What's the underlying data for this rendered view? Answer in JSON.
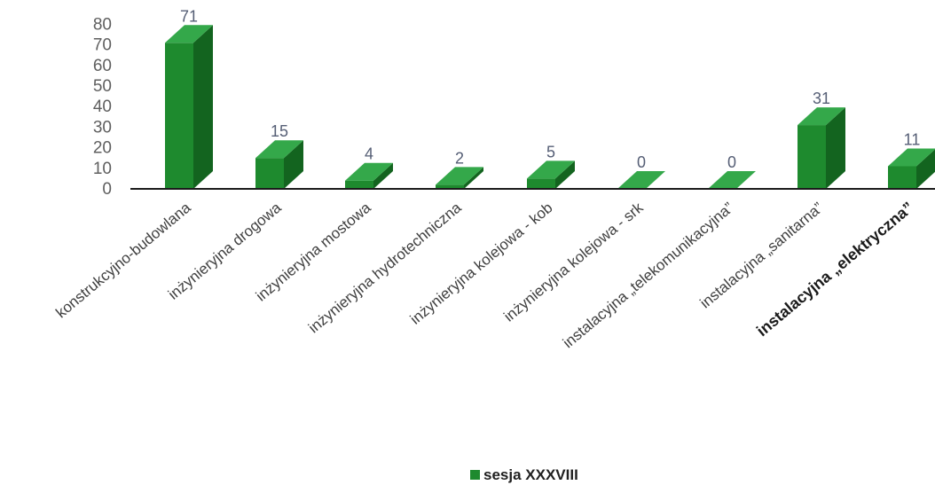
{
  "chart_data": {
    "type": "bar",
    "style": "3d",
    "categories": [
      "konstrukcyjno-budowlana",
      "inżynieryjna drogowa",
      "inżynieryjna mostowa",
      "inżynieryjna hydrotechniczna",
      "inżynieryjna kolejowa - kob",
      "inżynieryjna kolejowa - srk",
      "instalacyjna „telekomunikacyjna”",
      "instalacyjna „sanitarna”",
      "instalacyjna „elektryczna”"
    ],
    "series": [
      {
        "name": "sesja XXXVIII",
        "values": [
          71,
          15,
          4,
          2,
          5,
          0,
          0,
          31,
          11
        ],
        "labels": [
          "71",
          "15",
          "4",
          "2",
          "5",
          "0",
          "0",
          "31",
          "11"
        ],
        "color": "#1e8a2e"
      }
    ],
    "y_ticks": [
      "80",
      "70",
      "60",
      "50",
      "40",
      "30",
      "20",
      "10",
      "0"
    ],
    "ylim": [
      0,
      80
    ],
    "grid": false,
    "legend_position": "bottom"
  },
  "colors": {
    "bar_front": "#1e8a2e",
    "bar_top": "#34a84a",
    "bar_side": "#13641f",
    "axis": "#1a1a1a"
  }
}
